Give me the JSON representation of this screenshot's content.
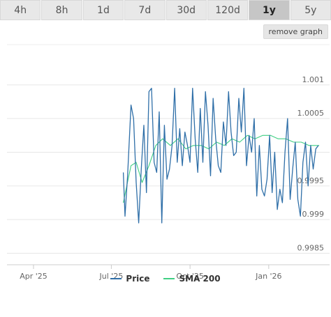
{
  "range_tabs": [
    {
      "label": "4h",
      "active": false
    },
    {
      "label": "8h",
      "active": false
    },
    {
      "label": "1d",
      "active": false
    },
    {
      "label": "7d",
      "active": false
    },
    {
      "label": "30d",
      "active": false
    },
    {
      "label": "120d",
      "active": false
    },
    {
      "label": "1y",
      "active": true
    },
    {
      "label": "5y",
      "active": false
    }
  ],
  "remove_graph_label": "remove graph",
  "colors": {
    "price": "#2f6fa8",
    "sma": "#3fcf83",
    "grid": "#e6e6e6"
  },
  "legend": [
    {
      "name": "Price",
      "color_key": "price"
    },
    {
      "name": "SMA 200",
      "color_key": "sma"
    }
  ],
  "chart_data": {
    "type": "line",
    "title": "",
    "xlabel": "",
    "ylabel": "",
    "x_ticks": [
      "Apr '25",
      "Jul '25",
      "Oct '25",
      "Jan '26"
    ],
    "x_tick_values": [
      "2025-04-01",
      "2025-07-01",
      "2025-10-01",
      "2026-01-01"
    ],
    "y_ticks": [
      "0.9985",
      "0.999",
      "0.9995",
      "",
      "1.0005",
      "1.001"
    ],
    "y_tick_values": [
      0.9985,
      0.999,
      0.9995,
      1,
      1.0005,
      1.001
    ],
    "x_range": [
      "2025-03-01",
      "2026-03-05"
    ],
    "ylim": [
      0.99835,
      1.00105
    ],
    "grid": "horizontal",
    "legend_position": "bottom",
    "series": [
      {
        "name": "Price",
        "x": [
          "2025-07-15",
          "2025-07-17",
          "2025-07-20",
          "2025-07-24",
          "2025-07-27",
          "2025-07-30",
          "2025-08-02",
          "2025-08-05",
          "2025-08-08",
          "2025-08-11",
          "2025-08-14",
          "2025-08-17",
          "2025-08-20",
          "2025-08-23",
          "2025-08-26",
          "2025-08-29",
          "2025-09-01",
          "2025-09-04",
          "2025-09-07",
          "2025-09-10",
          "2025-09-13",
          "2025-09-16",
          "2025-09-19",
          "2025-09-22",
          "2025-09-25",
          "2025-09-28",
          "2025-10-01",
          "2025-10-04",
          "2025-10-07",
          "2025-10-10",
          "2025-10-13",
          "2025-10-16",
          "2025-10-19",
          "2025-10-22",
          "2025-10-25",
          "2025-10-28",
          "2025-10-31",
          "2025-11-03",
          "2025-11-06",
          "2025-11-09",
          "2025-11-12",
          "2025-11-15",
          "2025-11-18",
          "2025-11-21",
          "2025-11-24",
          "2025-11-27",
          "2025-11-30",
          "2025-12-03",
          "2025-12-06",
          "2025-12-09",
          "2025-12-12",
          "2025-12-15",
          "2025-12-18",
          "2025-12-21",
          "2025-12-24",
          "2025-12-27",
          "2025-12-30",
          "2026-01-02",
          "2026-01-05",
          "2026-01-08",
          "2026-01-11",
          "2026-01-14",
          "2026-01-17",
          "2026-01-20",
          "2026-01-23",
          "2026-01-26",
          "2026-01-29",
          "2026-02-01",
          "2026-02-04",
          "2026-02-07",
          "2026-02-10",
          "2026-02-13",
          "2026-02-16",
          "2026-02-19",
          "2026-02-22",
          "2026-02-25",
          "2026-02-28"
        ],
        "y": [
          0.9997,
          0.99905,
          0.99965,
          1.0007,
          1.0005,
          0.99955,
          0.99895,
          0.99975,
          1.0004,
          0.9994,
          1.0009,
          1.00095,
          0.99985,
          0.9997,
          1.0006,
          0.99895,
          1.0004,
          0.9996,
          0.99975,
          1.0001,
          1.00095,
          0.99985,
          1.00035,
          0.9998,
          1.0003,
          1.0001,
          0.99985,
          1.00095,
          1.0002,
          0.9997,
          1.00065,
          0.99985,
          1.0009,
          1.0004,
          0.99965,
          1.0008,
          1.0002,
          0.9998,
          0.9997,
          1.00045,
          1.0001,
          1.0009,
          1.0003,
          0.99995,
          1.0,
          1.0008,
          1.0003,
          1.00095,
          0.9998,
          1.00025,
          1.0,
          1.0005,
          0.99935,
          1.0001,
          0.99945,
          0.99935,
          0.9996,
          1.00025,
          0.9994,
          1.0,
          0.99915,
          0.99945,
          0.99925,
          1.0,
          1.0005,
          0.9993,
          0.99975,
          1.00015,
          0.9993,
          0.99905,
          0.99985,
          1.00015,
          0.9995,
          1.0001,
          0.99975,
          1.00005,
          1.0001
        ]
      },
      {
        "name": "SMA 200",
        "x": [
          "2025-07-15",
          "2025-07-19",
          "2025-07-24",
          "2025-07-30",
          "2025-08-06",
          "2025-08-14",
          "2025-08-22",
          "2025-08-30",
          "2025-09-08",
          "2025-09-17",
          "2025-09-26",
          "2025-10-05",
          "2025-10-14",
          "2025-10-23",
          "2025-11-01",
          "2025-11-10",
          "2025-11-19",
          "2025-11-28",
          "2025-12-07",
          "2025-12-16",
          "2025-12-25",
          "2026-01-03",
          "2026-01-12",
          "2026-01-21",
          "2026-01-30",
          "2026-02-08",
          "2026-02-17",
          "2026-02-26",
          "2026-03-01"
        ],
        "y": [
          0.99925,
          0.9995,
          0.9998,
          0.99985,
          0.99955,
          0.9998,
          1.0001,
          1.0002,
          1.0001,
          1.0002,
          1.00005,
          1.0001,
          1.0001,
          1.00005,
          1.00015,
          1.0001,
          1.0002,
          1.00015,
          1.00025,
          1.0002,
          1.00025,
          1.00025,
          1.0002,
          1.0002,
          1.00015,
          1.00015,
          1.0001,
          1.0001,
          1.0001
        ]
      }
    ]
  }
}
